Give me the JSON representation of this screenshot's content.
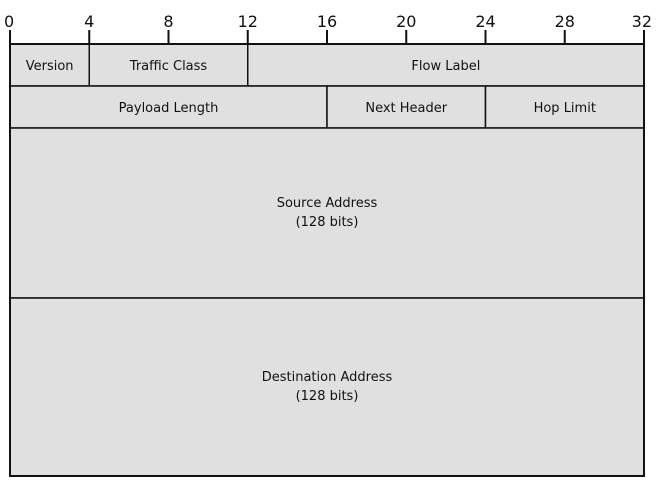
{
  "scale": {
    "total_bits": 32,
    "tick_step": 4,
    "labels": [
      "0",
      "4",
      "8",
      "12",
      "16",
      "20",
      "24",
      "28",
      "32"
    ]
  },
  "fill_color": "#e0e0e0",
  "line_color": "#111111",
  "rows": [
    {
      "fields": [
        {
          "label": "Version",
          "start_bit": 0,
          "end_bit": 4
        },
        {
          "label": "Traffic Class",
          "start_bit": 4,
          "end_bit": 12
        },
        {
          "label": "Flow Label",
          "start_bit": 12,
          "end_bit": 32
        }
      ]
    },
    {
      "fields": [
        {
          "label": "Payload Length",
          "start_bit": 0,
          "end_bit": 16
        },
        {
          "label": "Next Header",
          "start_bit": 16,
          "end_bit": 24
        },
        {
          "label": "Hop Limit",
          "start_bit": 24,
          "end_bit": 32
        }
      ]
    },
    {
      "fields": [
        {
          "label": "Source Address",
          "sublabel": "(128 bits)",
          "start_bit": 0,
          "end_bit": 32
        }
      ]
    },
    {
      "fields": [
        {
          "label": "Destination Address",
          "sublabel": "(128 bits)",
          "start_bit": 0,
          "end_bit": 32
        }
      ]
    }
  ]
}
